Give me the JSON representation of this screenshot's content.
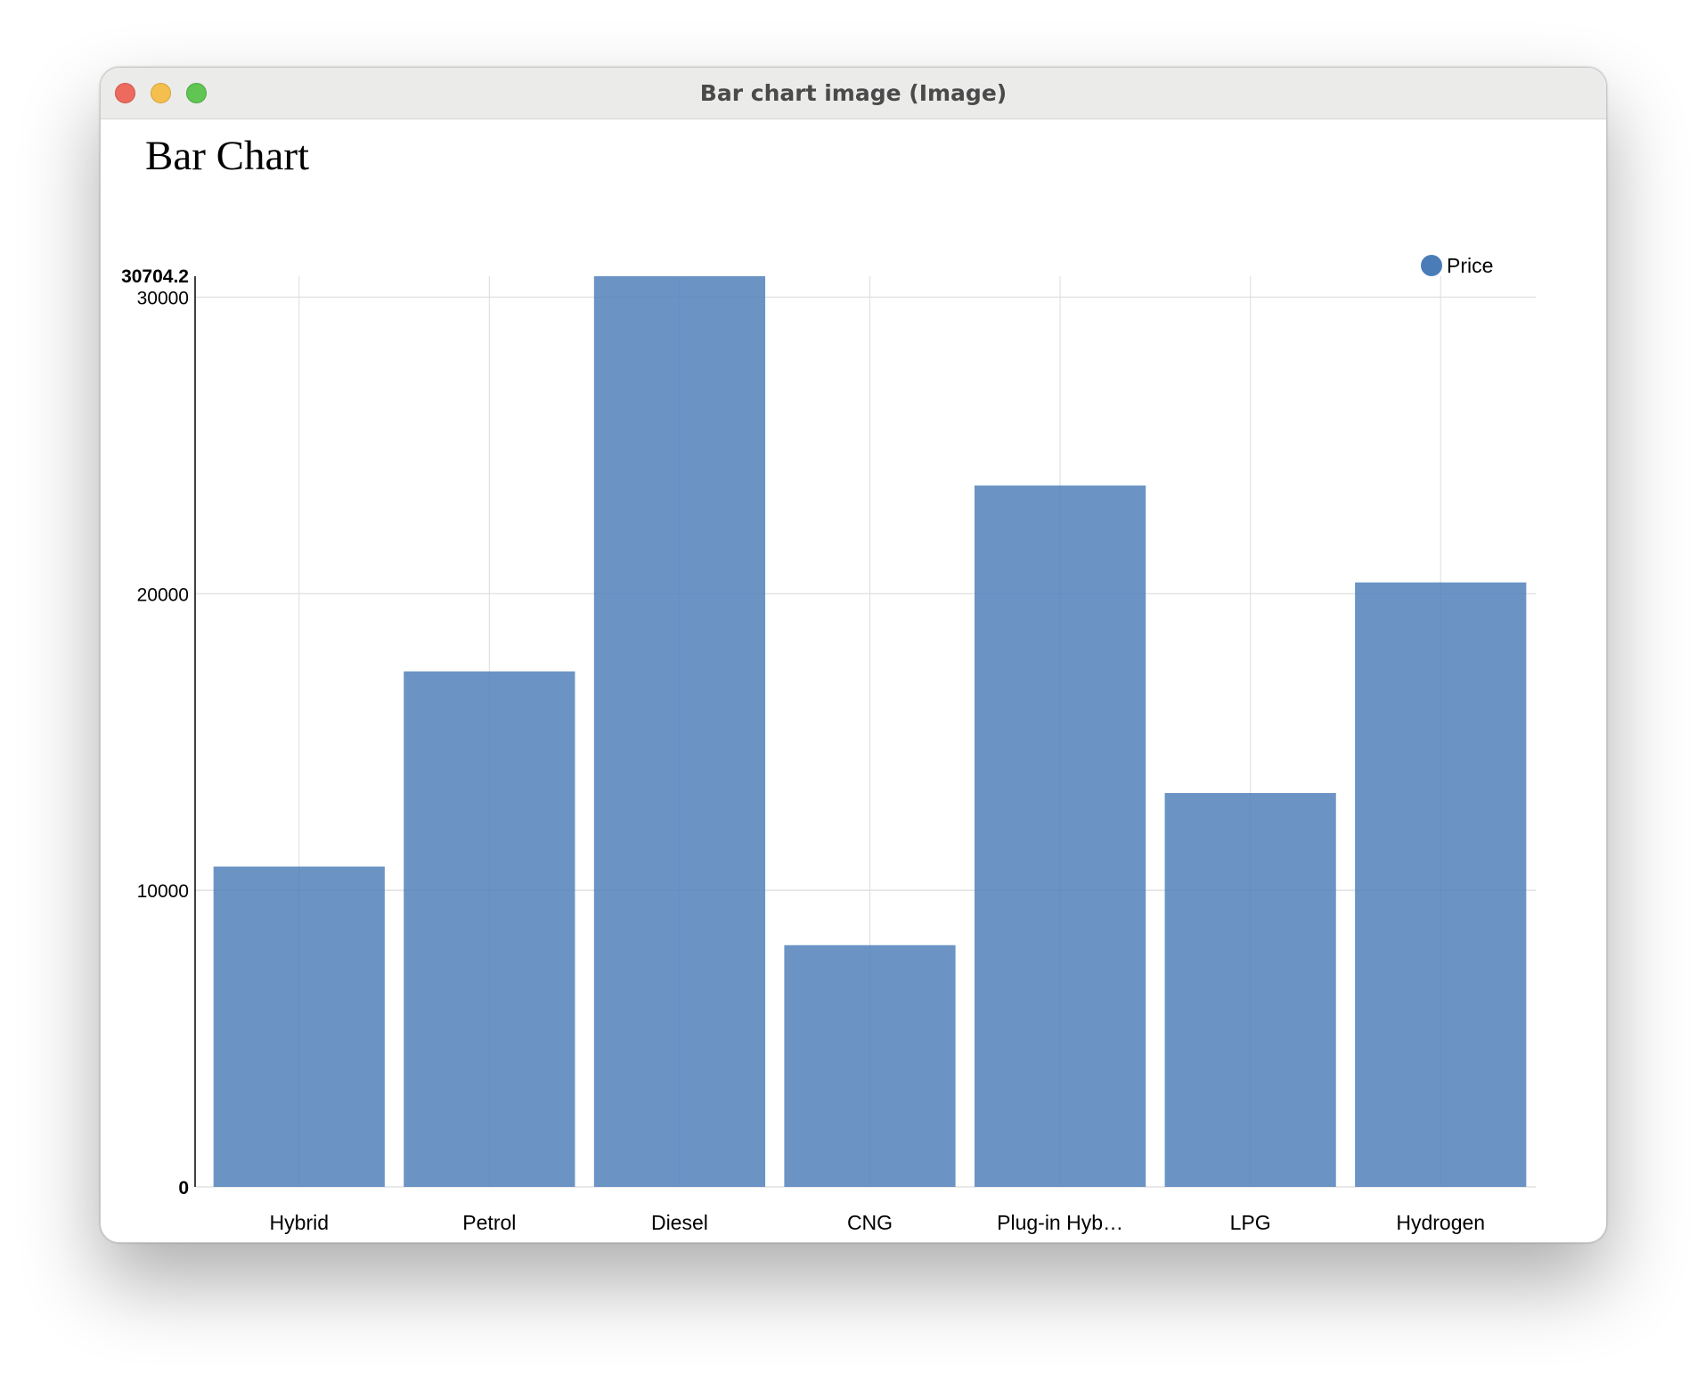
{
  "window": {
    "title": "Bar chart image (Image)"
  },
  "chart_data": {
    "type": "bar",
    "title": "Bar Chart",
    "xlabel": "",
    "ylabel": "",
    "categories": [
      "Hybrid",
      "Petrol",
      "Diesel",
      "CNG",
      "Plug-in Hyb…",
      "LPG",
      "Hydrogen"
    ],
    "series": [
      {
        "name": "Price",
        "values": [
          10800,
          17380,
          30704.2,
          8150,
          23650,
          13280,
          20380
        ],
        "color": "#4a7db8"
      }
    ],
    "ylim": [
      0,
      30704.2
    ],
    "yticks": [
      0,
      10000,
      20000,
      30000
    ],
    "ytick_labels": [
      "0",
      "10000",
      "20000",
      "30000"
    ],
    "ymax_label": "30704.2",
    "grid": true,
    "legend": "top-right"
  }
}
